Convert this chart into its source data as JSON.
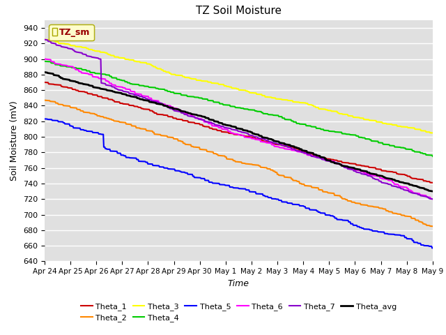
{
  "title": "TZ Soil Moisture",
  "ylabel": "Soil Moisture (mV)",
  "xlabel": "Time",
  "xlabels": [
    "Apr 24",
    "Apr 25",
    "Apr 26",
    "Apr 27",
    "Apr 28",
    "Apr 29",
    "Apr 30",
    "May 1",
    "May 2",
    "May 3",
    "May 4",
    "May 5",
    "May 6",
    "May 7",
    "May 8",
    "May 9"
  ],
  "ylim": [
    640,
    950
  ],
  "yticks": [
    640,
    660,
    680,
    700,
    720,
    740,
    760,
    780,
    800,
    820,
    840,
    860,
    880,
    900,
    920,
    940
  ],
  "series_colors": {
    "Theta_1": "#cc0000",
    "Theta_2": "#ff8800",
    "Theta_3": "#ffff00",
    "Theta_4": "#00cc00",
    "Theta_5": "#0000ff",
    "Theta_6": "#ff00ff",
    "Theta_7": "#8800cc",
    "Theta_avg": "#000000"
  },
  "series_lw": {
    "Theta_1": 1.5,
    "Theta_2": 1.5,
    "Theta_3": 1.5,
    "Theta_4": 1.5,
    "Theta_5": 1.5,
    "Theta_6": 1.5,
    "Theta_7": 1.5,
    "Theta_avg": 2.0
  },
  "fig_bg": "#ffffff",
  "plot_bg": "#e0e0e0",
  "grid_color": "#ffffff",
  "legend_box_bg": "#ffffcc",
  "legend_box_edge": "#aaa800",
  "legend_box_text": "#990000"
}
